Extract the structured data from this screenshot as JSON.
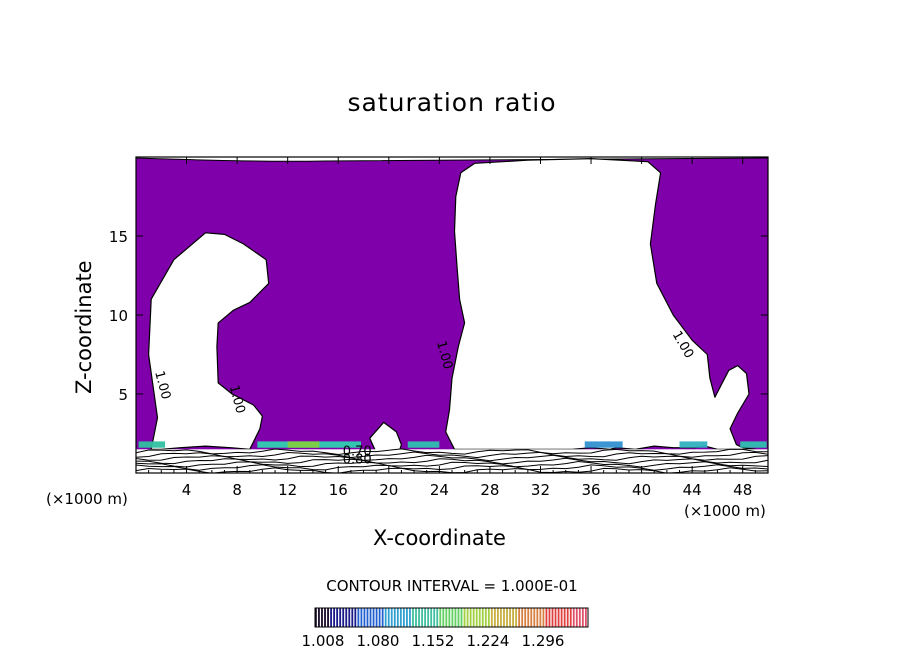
{
  "chart_data": {
    "type": "contour",
    "title": "saturation ratio",
    "xlabel": "X-coordinate",
    "ylabel": "Z-coordinate",
    "x_unit_left": "(×1000 m)",
    "x_unit_right": "(×1000 m)",
    "xlim": [
      0,
      50
    ],
    "ylim": [
      0,
      20
    ],
    "x_ticks": [
      4,
      8,
      12,
      16,
      20,
      24,
      28,
      32,
      36,
      40,
      44,
      48
    ],
    "x_tick_labels": [
      "4",
      "8",
      "12",
      "16",
      "20",
      "24",
      "28",
      "32",
      "36",
      "40",
      "44",
      "48"
    ],
    "y_ticks": [
      5,
      10,
      15
    ],
    "y_tick_labels": [
      "5",
      "10",
      "15"
    ],
    "fill_color": "#7f00aa",
    "contour_interval_text": "CONTOUR INTERVAL = 1.000E-01",
    "contour_labels": [
      {
        "text": "1.00",
        "x": 1.8,
        "z": 5.5
      },
      {
        "text": "1.00",
        "x": 7.7,
        "z": 4.6
      },
      {
        "text": "1.00",
        "x": 24.1,
        "z": 7.4
      },
      {
        "text": "1.00",
        "x": 43.0,
        "z": 8.0
      },
      {
        "text": "0.70",
        "x": 17.5,
        "z": 1.1
      },
      {
        "text": "0.80",
        "x": 17.5,
        "z": 0.6
      }
    ],
    "white_regions": [
      [
        [
          1.2,
          1.5
        ],
        [
          1.7,
          3.5
        ],
        [
          1.0,
          7.5
        ],
        [
          1.2,
          11.0
        ],
        [
          3.0,
          13.5
        ],
        [
          5.5,
          15.2
        ],
        [
          7.0,
          15.1
        ],
        [
          8.5,
          14.5
        ],
        [
          10.3,
          13.5
        ],
        [
          10.5,
          12.0
        ],
        [
          9.0,
          10.8
        ],
        [
          7.7,
          10.3
        ],
        [
          6.5,
          9.5
        ],
        [
          6.4,
          8.0
        ],
        [
          6.5,
          5.7
        ],
        [
          7.6,
          5.0
        ],
        [
          9.3,
          4.3
        ],
        [
          10.0,
          3.6
        ],
        [
          9.8,
          2.8
        ],
        [
          9.0,
          1.5
        ],
        [
          7.5,
          1.6
        ],
        [
          5.5,
          1.7
        ],
        [
          3.5,
          1.6
        ],
        [
          2.0,
          1.5
        ]
      ],
      [
        [
          19.0,
          1.3
        ],
        [
          18.5,
          2.2
        ],
        [
          19.6,
          3.2
        ],
        [
          20.6,
          2.6
        ],
        [
          21.0,
          1.8
        ],
        [
          20.8,
          1.3
        ],
        [
          20.0,
          1.1
        ]
      ],
      [
        [
          25.2,
          1.5
        ],
        [
          24.5,
          2.6
        ],
        [
          24.8,
          4.0
        ],
        [
          25.0,
          6.0
        ],
        [
          25.5,
          8.0
        ],
        [
          26.0,
          9.5
        ],
        [
          25.6,
          11.0
        ],
        [
          25.4,
          13.0
        ],
        [
          25.2,
          15.3
        ],
        [
          25.3,
          17.5
        ],
        [
          25.7,
          19.0
        ],
        [
          26.8,
          19.6
        ],
        [
          31.0,
          19.8
        ],
        [
          36.0,
          19.9
        ],
        [
          40.5,
          19.7
        ],
        [
          41.5,
          19.0
        ],
        [
          41.1,
          17.0
        ],
        [
          40.7,
          14.5
        ],
        [
          41.2,
          12.0
        ],
        [
          42.5,
          10.0
        ],
        [
          44.0,
          8.4
        ],
        [
          45.2,
          7.5
        ],
        [
          45.4,
          6.0
        ],
        [
          45.8,
          4.8
        ],
        [
          46.9,
          6.5
        ],
        [
          47.6,
          6.8
        ],
        [
          48.3,
          6.3
        ],
        [
          48.5,
          5.0
        ],
        [
          47.6,
          3.8
        ],
        [
          47.0,
          2.8
        ],
        [
          47.5,
          1.8
        ],
        [
          48.0,
          1.6
        ],
        [
          49.0,
          1.5
        ],
        [
          46.0,
          1.5
        ],
        [
          45.0,
          1.7
        ],
        [
          44.2,
          1.6
        ],
        [
          42.5,
          1.6
        ],
        [
          41.0,
          1.7
        ],
        [
          39.5,
          1.5
        ],
        [
          38.0,
          1.6
        ],
        [
          37.5,
          1.5
        ],
        [
          36.0,
          1.6
        ],
        [
          34.5,
          1.5
        ]
      ]
    ],
    "surface_bands_z": [
      0.15,
      0.35,
      0.55,
      0.75,
      0.95,
      1.15,
      1.35
    ],
    "colorbar": {
      "tick_labels": [
        "1.008",
        "1.080",
        "1.152",
        "1.224",
        "1.296"
      ],
      "colors": [
        "#1a0a2a",
        "#1a1a8a",
        "#2060d0",
        "#30a0d0",
        "#40c0a0",
        "#60d060",
        "#a0d040",
        "#c8b040",
        "#d88040",
        "#e04040",
        "#e0506a"
      ]
    }
  }
}
